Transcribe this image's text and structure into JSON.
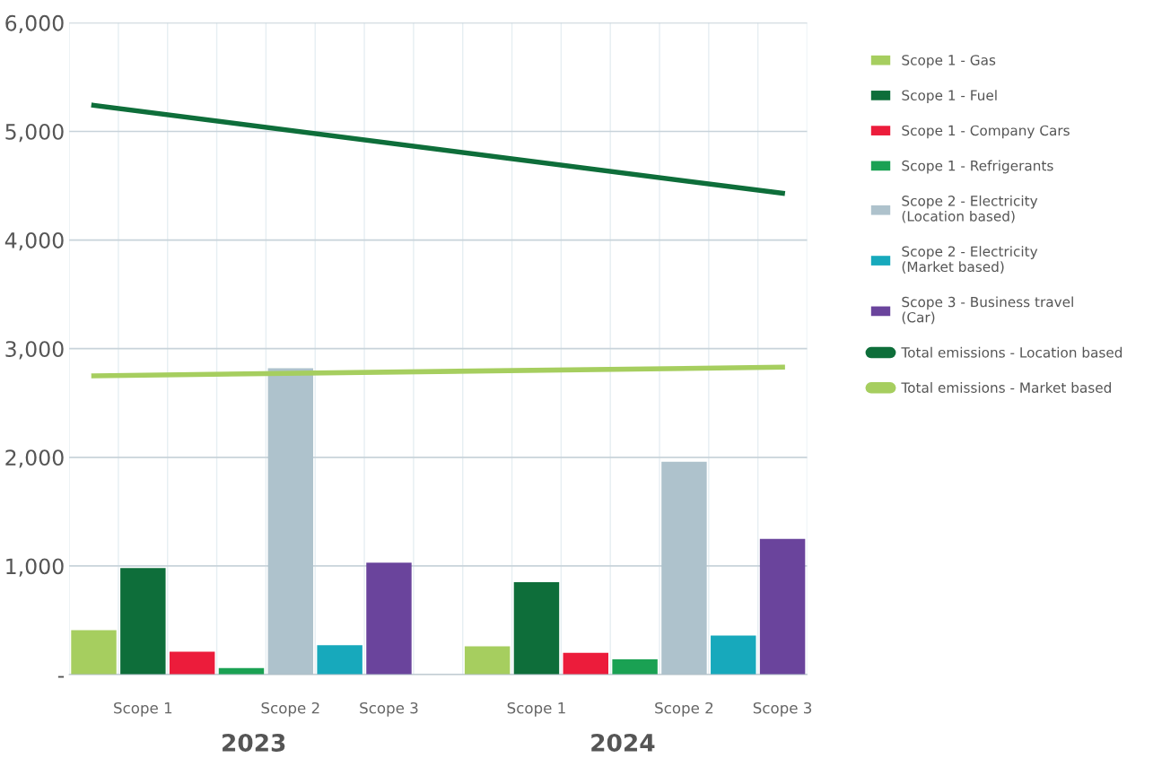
{
  "chart_data": {
    "type": "bar",
    "categories": [
      null,
      "Scope 1",
      null,
      null,
      "Scope 2",
      null,
      "Scope 3",
      null,
      null,
      "Scope 1",
      null,
      null,
      "Scope 2",
      null,
      "Scope 3"
    ],
    "series": [
      {
        "name": "Scope 1 - Gas",
        "color": "#a6ce5f",
        "values": [
          410,
          null,
          null,
          null,
          null,
          null,
          null,
          null,
          260,
          null,
          null,
          null,
          null,
          null,
          null
        ]
      },
      {
        "name": "Scope 1 - Fuel",
        "color": "#0e6e3a",
        "values": [
          null,
          980,
          null,
          null,
          null,
          null,
          null,
          null,
          null,
          850,
          null,
          null,
          null,
          null,
          null
        ]
      },
      {
        "name": "Scope 1 - Company Cars",
        "color": "#ec1c3b",
        "values": [
          null,
          null,
          210,
          null,
          null,
          null,
          null,
          null,
          null,
          null,
          200,
          null,
          null,
          null,
          null
        ]
      },
      {
        "name": "Scope 1 - Refrigerants",
        "color": "#1aa153",
        "values": [
          null,
          null,
          null,
          60,
          null,
          null,
          null,
          null,
          null,
          null,
          null,
          140,
          null,
          null,
          null
        ]
      },
      {
        "name": "Scope 2 - Electricity\n(Location based)",
        "color": "#aec2cc",
        "values": [
          null,
          null,
          null,
          null,
          2820,
          null,
          null,
          null,
          null,
          null,
          null,
          null,
          1960,
          null,
          null
        ]
      },
      {
        "name": "Scope 2 - Electricity\n(Market based)",
        "color": "#17a9bc",
        "values": [
          null,
          null,
          null,
          null,
          null,
          270,
          null,
          null,
          null,
          null,
          null,
          null,
          null,
          360,
          null
        ]
      },
      {
        "name": "Scope 3 - Business travel\n(Car)",
        "color": "#6a449c",
        "values": [
          null,
          null,
          null,
          null,
          null,
          null,
          1030,
          null,
          null,
          null,
          null,
          null,
          null,
          null,
          1250
        ]
      },
      {
        "name": "Total emissions - Location based",
        "type": "line",
        "color": "#0e6e3a",
        "values": [
          5240,
          null,
          null,
          null,
          null,
          null,
          null,
          null,
          null,
          null,
          null,
          null,
          null,
          null,
          4430
        ]
      },
      {
        "name": "Total emissions - Market based",
        "type": "line",
        "color": "#a6ce5f",
        "values": [
          2750,
          null,
          null,
          null,
          null,
          null,
          null,
          null,
          null,
          null,
          null,
          null,
          null,
          null,
          2830
        ]
      }
    ],
    "ylim": [
      0,
      6000
    ],
    "yticks": [
      {
        "value": 0,
        "label": "-"
      },
      {
        "value": 1000,
        "label": "1,000"
      },
      {
        "value": 2000,
        "label": "2,000"
      },
      {
        "value": 3000,
        "label": "3,000"
      },
      {
        "value": 4000,
        "label": "4,000"
      },
      {
        "value": 5000,
        "label": "5,000"
      },
      {
        "value": 6000,
        "label": "6,000"
      }
    ],
    "annotations": [
      "2023",
      "2024"
    ],
    "grid": true,
    "legend": "right"
  }
}
